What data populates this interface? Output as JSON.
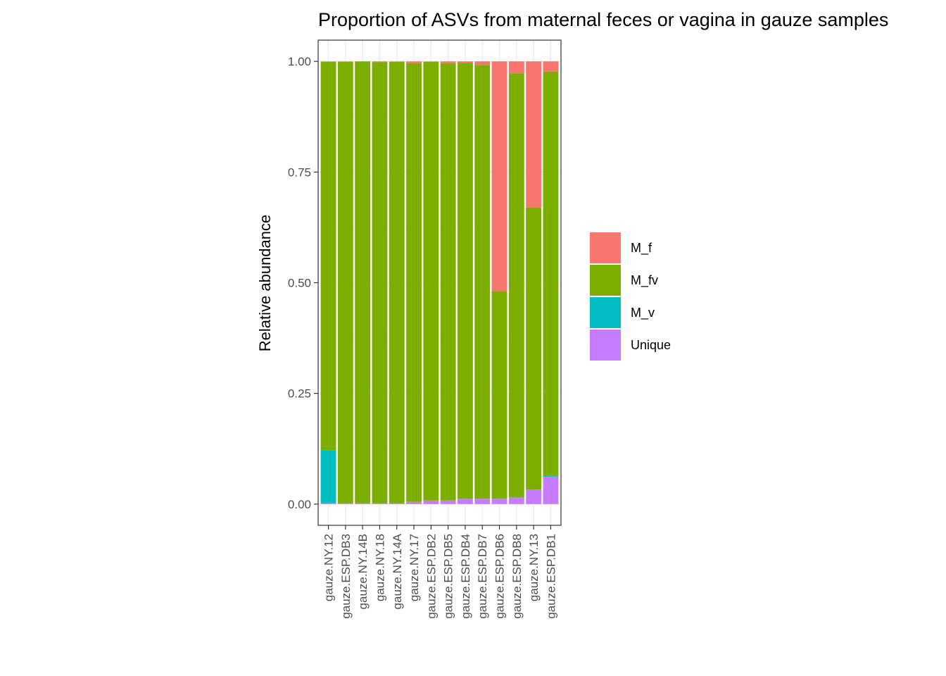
{
  "chart_data": {
    "type": "bar",
    "stacked": true,
    "title": "Proportion of ASVs from maternal feces or vagina in gauze samples",
    "xlabel": "",
    "ylabel": "Relative abundance",
    "ylim": [
      0,
      1
    ],
    "y_ticks": [
      "0.00",
      "0.25",
      "0.50",
      "0.75",
      "1.00"
    ],
    "grid": true,
    "legend_position": "right",
    "categories": [
      "gauze.NY.12",
      "gauze.ESP.DB3",
      "gauze.NY.14B",
      "gauze.NY.18",
      "gauze.NY.14A",
      "gauze.NY.17",
      "gauze.ESP.DB2",
      "gauze.ESP.DB5",
      "gauze.ESP.DB4",
      "gauze.ESP.DB7",
      "gauze.ESP.DB6",
      "gauze.ESP.DB8",
      "gauze.NY.13",
      "gauze.ESP.DB1"
    ],
    "series": [
      {
        "name": "M_f",
        "color": "#F8766D",
        "values": [
          0.001,
          0.001,
          0.0,
          0.002,
          0.001,
          0.004,
          0.001,
          0.004,
          0.003,
          0.008,
          0.519,
          0.027,
          0.33,
          0.023
        ]
      },
      {
        "name": "M_fv",
        "color": "#7CAE00",
        "values": [
          0.877,
          0.997,
          0.998,
          0.996,
          0.997,
          0.991,
          0.991,
          0.988,
          0.985,
          0.98,
          0.469,
          0.958,
          0.637,
          0.912
        ]
      },
      {
        "name": "M_v",
        "color": "#00BFC4",
        "values": [
          0.12,
          0.0,
          0.0,
          0.0,
          0.0,
          0.0,
          0.0,
          0.0,
          0.0,
          0.0,
          0.0,
          0.0,
          0.0,
          0.003
        ]
      },
      {
        "name": "Unique",
        "color": "#C77CFF",
        "values": [
          0.002,
          0.002,
          0.002,
          0.002,
          0.002,
          0.005,
          0.008,
          0.008,
          0.012,
          0.012,
          0.012,
          0.015,
          0.033,
          0.062
        ]
      }
    ]
  }
}
